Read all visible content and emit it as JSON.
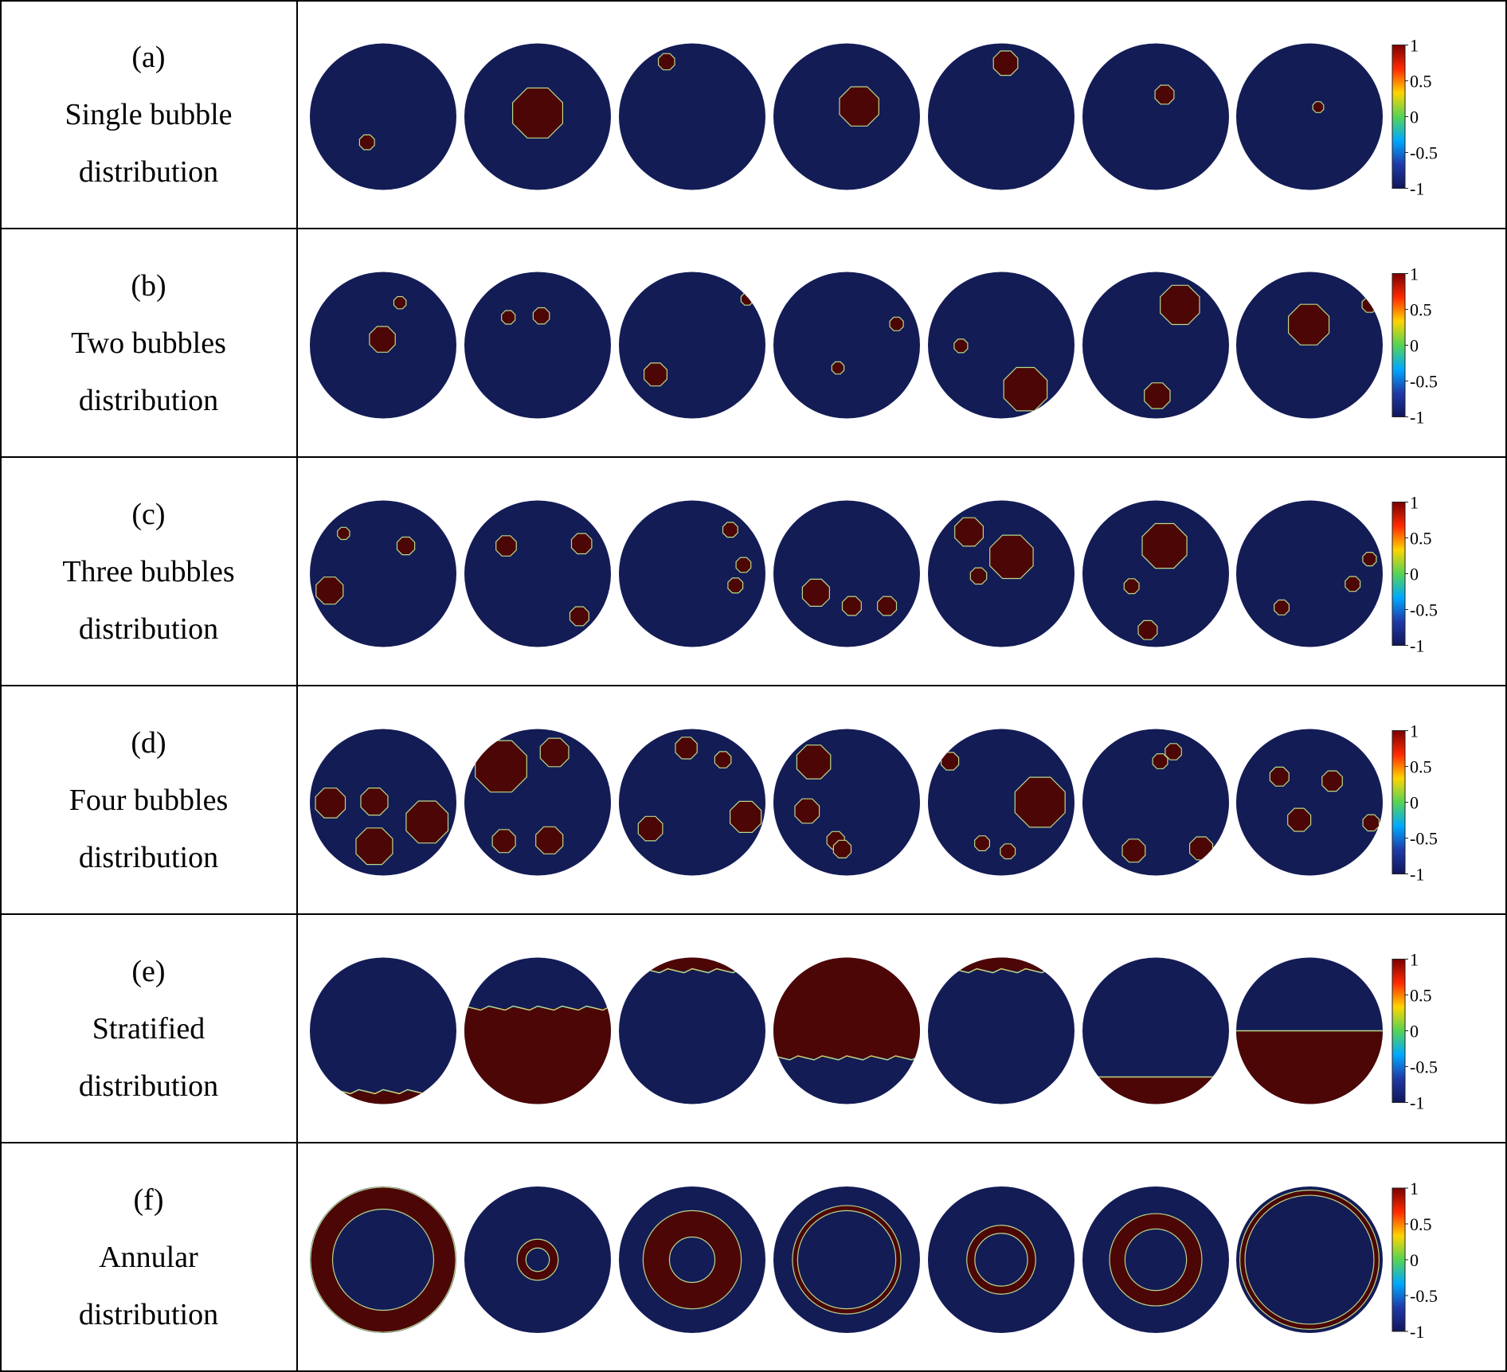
{
  "rows": [
    {
      "tag": "(a)",
      "line1": "Single bubble",
      "line2": "distribution"
    },
    {
      "tag": "(b)",
      "line1": "Two bubbles",
      "line2": "distribution"
    },
    {
      "tag": "(c)",
      "line1": "Three bubbles",
      "line2": "distribution"
    },
    {
      "tag": "(d)",
      "line1": "Four bubbles",
      "line2": "distribution"
    },
    {
      "tag": "(e)",
      "line1": "Stratified",
      "line2": "distribution"
    },
    {
      "tag": "(f)",
      "line1": "Annular",
      "line2": "distribution"
    }
  ],
  "colorbar": {
    "tick_labels": [
      "1",
      "0.5",
      "0",
      "-0.5",
      "-1"
    ],
    "colors": [
      "#7a0000",
      "#ff2a00",
      "#ffd400",
      "#55d455",
      "#00a8ff",
      "#1f3aa8",
      "#11165a"
    ]
  },
  "colors": {
    "background_phase": "#141c56",
    "bubble_phase": "#4d0606",
    "interface": "#b9d88a",
    "border": "#000000"
  },
  "phantoms": [
    [
      {
        "bubbles": [
          [
            -0.22,
            0.35,
            0.11
          ]
        ]
      },
      {
        "bubbles": [
          [
            0.0,
            -0.05,
            0.37
          ]
        ]
      },
      {
        "bubbles": [
          [
            -0.35,
            -0.75,
            0.12
          ]
        ]
      },
      {
        "bubbles": [
          [
            0.17,
            -0.14,
            0.29
          ]
        ]
      },
      {
        "bubbles": [
          [
            0.06,
            -0.73,
            0.18
          ]
        ]
      },
      {
        "bubbles": [
          [
            0.12,
            -0.3,
            0.14
          ]
        ]
      },
      {
        "bubbles": [
          [
            0.12,
            -0.13,
            0.08
          ]
        ]
      }
    ],
    [
      {
        "bubbles": [
          [
            0.23,
            -0.58,
            0.09
          ],
          [
            -0.01,
            -0.08,
            0.19
          ]
        ]
      },
      {
        "bubbles": [
          [
            -0.4,
            -0.38,
            0.1
          ],
          [
            0.05,
            -0.4,
            0.12
          ]
        ]
      },
      {
        "bubbles": [
          [
            0.75,
            -0.63,
            0.09
          ],
          [
            -0.5,
            0.4,
            0.17
          ]
        ]
      },
      {
        "bubbles": [
          [
            0.68,
            -0.29,
            0.1
          ],
          [
            -0.12,
            0.31,
            0.09
          ]
        ]
      },
      {
        "bubbles": [
          [
            -0.55,
            0.01,
            0.1
          ],
          [
            0.33,
            0.6,
            0.32
          ]
        ]
      },
      {
        "bubbles": [
          [
            0.33,
            -0.55,
            0.29
          ],
          [
            0.02,
            0.69,
            0.19
          ]
        ]
      },
      {
        "bubbles": [
          [
            0.82,
            -0.55,
            0.11
          ],
          [
            -0.01,
            -0.28,
            0.3
          ]
        ]
      }
    ],
    [
      {
        "bubbles": [
          [
            -0.54,
            -0.55,
            0.09
          ],
          [
            0.31,
            -0.38,
            0.13
          ],
          [
            -0.73,
            0.23,
            0.2
          ]
        ]
      },
      {
        "bubbles": [
          [
            -0.43,
            -0.38,
            0.15
          ],
          [
            0.6,
            -0.41,
            0.15
          ],
          [
            0.57,
            0.58,
            0.14
          ]
        ]
      },
      {
        "bubbles": [
          [
            0.52,
            -0.6,
            0.11
          ],
          [
            0.7,
            -0.12,
            0.11
          ],
          [
            0.59,
            0.16,
            0.11
          ]
        ]
      },
      {
        "bubbles": [
          [
            -0.42,
            0.26,
            0.2
          ],
          [
            0.07,
            0.44,
            0.14
          ],
          [
            0.55,
            0.44,
            0.14
          ]
        ]
      },
      {
        "bubbles": [
          [
            -0.44,
            -0.57,
            0.21
          ],
          [
            0.14,
            -0.23,
            0.32
          ],
          [
            -0.31,
            0.03,
            0.12
          ]
        ]
      },
      {
        "bubbles": [
          [
            0.12,
            -0.38,
            0.33
          ],
          [
            -0.33,
            0.17,
            0.11
          ],
          [
            -0.11,
            0.77,
            0.14
          ]
        ]
      },
      {
        "bubbles": [
          [
            0.82,
            -0.2,
            0.1
          ],
          [
            0.59,
            0.14,
            0.11
          ],
          [
            -0.38,
            0.46,
            0.11
          ]
        ]
      }
    ],
    [
      {
        "bubbles": [
          [
            -0.72,
            0.01,
            0.22
          ],
          [
            -0.12,
            -0.01,
            0.2
          ],
          [
            0.6,
            0.27,
            0.31
          ],
          [
            -0.12,
            0.6,
            0.27
          ]
        ]
      },
      {
        "bubbles": [
          [
            -0.5,
            -0.49,
            0.38
          ],
          [
            0.23,
            -0.68,
            0.21
          ],
          [
            -0.46,
            0.53,
            0.17
          ],
          [
            0.16,
            0.52,
            0.2
          ]
        ]
      },
      {
        "bubbles": [
          [
            -0.08,
            -0.74,
            0.16
          ],
          [
            0.42,
            -0.58,
            0.12
          ],
          [
            -0.57,
            0.36,
            0.18
          ],
          [
            0.73,
            0.2,
            0.23
          ]
        ]
      },
      {
        "bubbles": [
          [
            -0.45,
            -0.55,
            0.25
          ],
          [
            -0.54,
            0.12,
            0.18
          ],
          [
            -0.15,
            0.52,
            0.13
          ],
          [
            -0.06,
            0.64,
            0.13
          ]
        ]
      },
      {
        "bubbles": [
          [
            -0.7,
            -0.56,
            0.13
          ],
          [
            0.53,
            0.0,
            0.37
          ],
          [
            -0.26,
            0.56,
            0.11
          ],
          [
            0.09,
            0.67,
            0.11
          ]
        ]
      },
      {
        "bubbles": [
          [
            0.24,
            -0.69,
            0.12
          ],
          [
            0.06,
            -0.56,
            0.11
          ],
          [
            -0.3,
            0.66,
            0.17
          ],
          [
            0.62,
            0.63,
            0.17
          ]
        ]
      },
      {
        "bubbles": [
          [
            -0.41,
            -0.35,
            0.14
          ],
          [
            0.31,
            -0.29,
            0.15
          ],
          [
            -0.14,
            0.24,
            0.17
          ],
          [
            0.84,
            0.28,
            0.12
          ]
        ]
      }
    ],
    [
      {
        "level": 0.83
      },
      {
        "level": -0.31
      },
      {
        "level": -0.82
      },
      {
        "level": 0.37
      },
      {
        "level": -0.82
      },
      {
        "level": 0.63
      },
      {
        "level": 0.0
      }
    ],
    [
      {
        "outer": 0.99,
        "inner": 0.69
      },
      {
        "outer": 0.28,
        "inner": 0.16
      },
      {
        "outer": 0.67,
        "inner": 0.31
      },
      {
        "outer": 0.74,
        "inner": 0.67
      },
      {
        "outer": 0.47,
        "inner": 0.36
      },
      {
        "outer": 0.63,
        "inner": 0.42
      },
      {
        "outer": 0.95,
        "inner": 0.88
      }
    ]
  ]
}
